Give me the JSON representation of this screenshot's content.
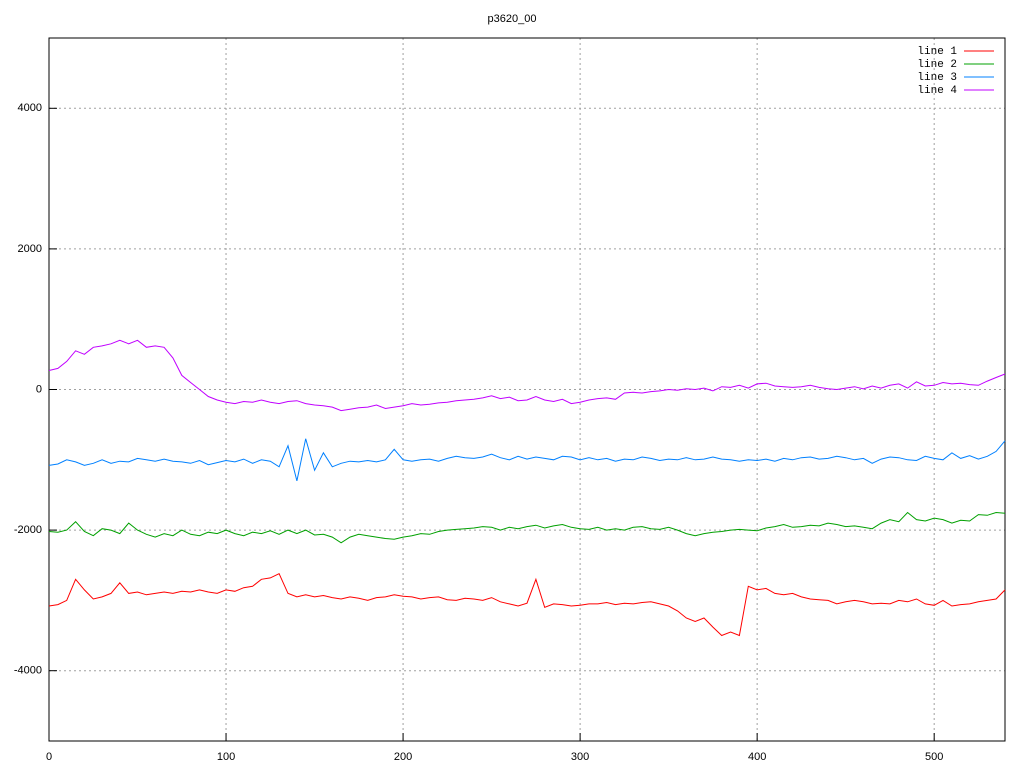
{
  "chart_data": {
    "type": "line",
    "title": "p3620_00",
    "x": [
      0,
      5,
      10,
      15,
      20,
      25,
      30,
      35,
      40,
      45,
      50,
      55,
      60,
      65,
      70,
      75,
      80,
      85,
      90,
      95,
      100,
      105,
      110,
      115,
      120,
      125,
      130,
      135,
      140,
      145,
      150,
      155,
      160,
      165,
      170,
      175,
      180,
      185,
      190,
      195,
      200,
      205,
      210,
      215,
      220,
      225,
      230,
      235,
      240,
      245,
      250,
      255,
      260,
      265,
      270,
      275,
      280,
      285,
      290,
      295,
      300,
      305,
      310,
      315,
      320,
      325,
      330,
      335,
      340,
      345,
      350,
      355,
      360,
      365,
      370,
      375,
      380,
      385,
      390,
      395,
      400,
      405,
      410,
      415,
      420,
      425,
      430,
      435,
      440,
      445,
      450,
      455,
      460,
      465,
      470,
      475,
      480,
      485,
      490,
      495,
      500,
      505,
      510,
      515,
      520,
      525,
      530,
      535,
      540
    ],
    "series": [
      {
        "name": "line 1",
        "color": "#ff0000",
        "values": [
          -3080,
          -3060,
          -3000,
          -2700,
          -2850,
          -2980,
          -2950,
          -2900,
          -2750,
          -2900,
          -2880,
          -2920,
          -2900,
          -2880,
          -2900,
          -2870,
          -2880,
          -2850,
          -2880,
          -2900,
          -2850,
          -2870,
          -2820,
          -2800,
          -2700,
          -2680,
          -2620,
          -2900,
          -2950,
          -2920,
          -2950,
          -2930,
          -2960,
          -2980,
          -2950,
          -2970,
          -3000,
          -2960,
          -2950,
          -2920,
          -2940,
          -2950,
          -2980,
          -2960,
          -2950,
          -2990,
          -3000,
          -2970,
          -2980,
          -3000,
          -2960,
          -3020,
          -3050,
          -3080,
          -3040,
          -2700,
          -3100,
          -3050,
          -3060,
          -3080,
          -3070,
          -3050,
          -3050,
          -3030,
          -3060,
          -3040,
          -3050,
          -3030,
          -3020,
          -3050,
          -3080,
          -3150,
          -3250,
          -3300,
          -3250,
          -3380,
          -3500,
          -3450,
          -3500,
          -2800,
          -2850,
          -2830,
          -2900,
          -2920,
          -2900,
          -2950,
          -2980,
          -2990,
          -3000,
          -3050,
          -3020,
          -3000,
          -3020,
          -3050,
          -3040,
          -3050,
          -3000,
          -3020,
          -2980,
          -3050,
          -3070,
          -3000,
          -3080,
          -3060,
          -3050,
          -3020,
          -3000,
          -2980,
          -2850
        ]
      },
      {
        "name": "line 2",
        "color": "#00a000",
        "values": [
          -2020,
          -2030,
          -2000,
          -1880,
          -2020,
          -2080,
          -1980,
          -2000,
          -2050,
          -1900,
          -2000,
          -2060,
          -2100,
          -2050,
          -2080,
          -2000,
          -2060,
          -2080,
          -2030,
          -2050,
          -2000,
          -2050,
          -2080,
          -2030,
          -2050,
          -2010,
          -2060,
          -2000,
          -2050,
          -2000,
          -2070,
          -2060,
          -2100,
          -2180,
          -2100,
          -2060,
          -2080,
          -2100,
          -2120,
          -2130,
          -2100,
          -2080,
          -2050,
          -2060,
          -2020,
          -2000,
          -1990,
          -1980,
          -1970,
          -1950,
          -1960,
          -2000,
          -1960,
          -1980,
          -1950,
          -1930,
          -1970,
          -1940,
          -1920,
          -1960,
          -1980,
          -1990,
          -1960,
          -2000,
          -1980,
          -2000,
          -1960,
          -1950,
          -1980,
          -1990,
          -1960,
          -2000,
          -2050,
          -2080,
          -2050,
          -2030,
          -2020,
          -2000,
          -1990,
          -2000,
          -2010,
          -1970,
          -1950,
          -1920,
          -1960,
          -1950,
          -1930,
          -1940,
          -1900,
          -1920,
          -1950,
          -1940,
          -1960,
          -1980,
          -1900,
          -1850,
          -1880,
          -1750,
          -1850,
          -1870,
          -1830,
          -1850,
          -1900,
          -1860,
          -1870,
          -1780,
          -1790,
          -1750,
          -1760
        ]
      },
      {
        "name": "line 3",
        "color": "#0080ff",
        "values": [
          -1080,
          -1060,
          -1000,
          -1030,
          -1080,
          -1050,
          -1000,
          -1050,
          -1020,
          -1030,
          -980,
          -1000,
          -1020,
          -990,
          -1020,
          -1030,
          -1050,
          -1010,
          -1070,
          -1040,
          -1010,
          -1030,
          -990,
          -1050,
          -1000,
          -1020,
          -1100,
          -800,
          -1300,
          -700,
          -1150,
          -900,
          -1100,
          -1050,
          -1020,
          -1030,
          -1010,
          -1030,
          -1000,
          -850,
          -1000,
          -1020,
          -1000,
          -990,
          -1020,
          -980,
          -950,
          -970,
          -980,
          -960,
          -920,
          -970,
          -1000,
          -950,
          -990,
          -960,
          -980,
          -1000,
          -950,
          -960,
          -1000,
          -970,
          -1000,
          -980,
          -1020,
          -990,
          -1000,
          -960,
          -980,
          -1010,
          -990,
          -1000,
          -970,
          -1000,
          -990,
          -960,
          -990,
          -1000,
          -1020,
          -1000,
          -1010,
          -990,
          -1020,
          -980,
          -1000,
          -970,
          -960,
          -990,
          -980,
          -950,
          -970,
          -1000,
          -980,
          -1050,
          -990,
          -960,
          -970,
          -1000,
          -1010,
          -950,
          -980,
          -1000,
          -900,
          -980,
          -940,
          -990,
          -950,
          -880,
          -730
        ]
      },
      {
        "name": "line 4",
        "color": "#c000ff",
        "values": [
          270,
          300,
          400,
          550,
          500,
          600,
          620,
          650,
          700,
          650,
          700,
          600,
          620,
          600,
          450,
          200,
          100,
          0,
          -100,
          -150,
          -180,
          -200,
          -170,
          -180,
          -150,
          -180,
          -200,
          -170,
          -160,
          -200,
          -220,
          -230,
          -250,
          -300,
          -280,
          -260,
          -250,
          -220,
          -270,
          -250,
          -230,
          -200,
          -220,
          -210,
          -190,
          -180,
          -160,
          -150,
          -140,
          -120,
          -90,
          -130,
          -110,
          -160,
          -150,
          -100,
          -150,
          -170,
          -140,
          -200,
          -180,
          -150,
          -130,
          -120,
          -140,
          -50,
          -40,
          -50,
          -30,
          -20,
          0,
          -10,
          10,
          0,
          20,
          -20,
          40,
          30,
          60,
          20,
          80,
          90,
          50,
          40,
          30,
          40,
          60,
          30,
          10,
          0,
          20,
          40,
          10,
          50,
          20,
          60,
          80,
          20,
          110,
          50,
          60,
          100,
          80,
          90,
          70,
          60,
          120,
          170,
          220
        ]
      }
    ],
    "xlim": [
      0,
      540
    ],
    "ylim": [
      -5000,
      5000
    ],
    "xticks": [
      0,
      100,
      200,
      300,
      400,
      500
    ],
    "yticks": [
      -4000,
      -2000,
      0,
      2000,
      4000
    ],
    "grid": true,
    "legend": "top-right"
  }
}
